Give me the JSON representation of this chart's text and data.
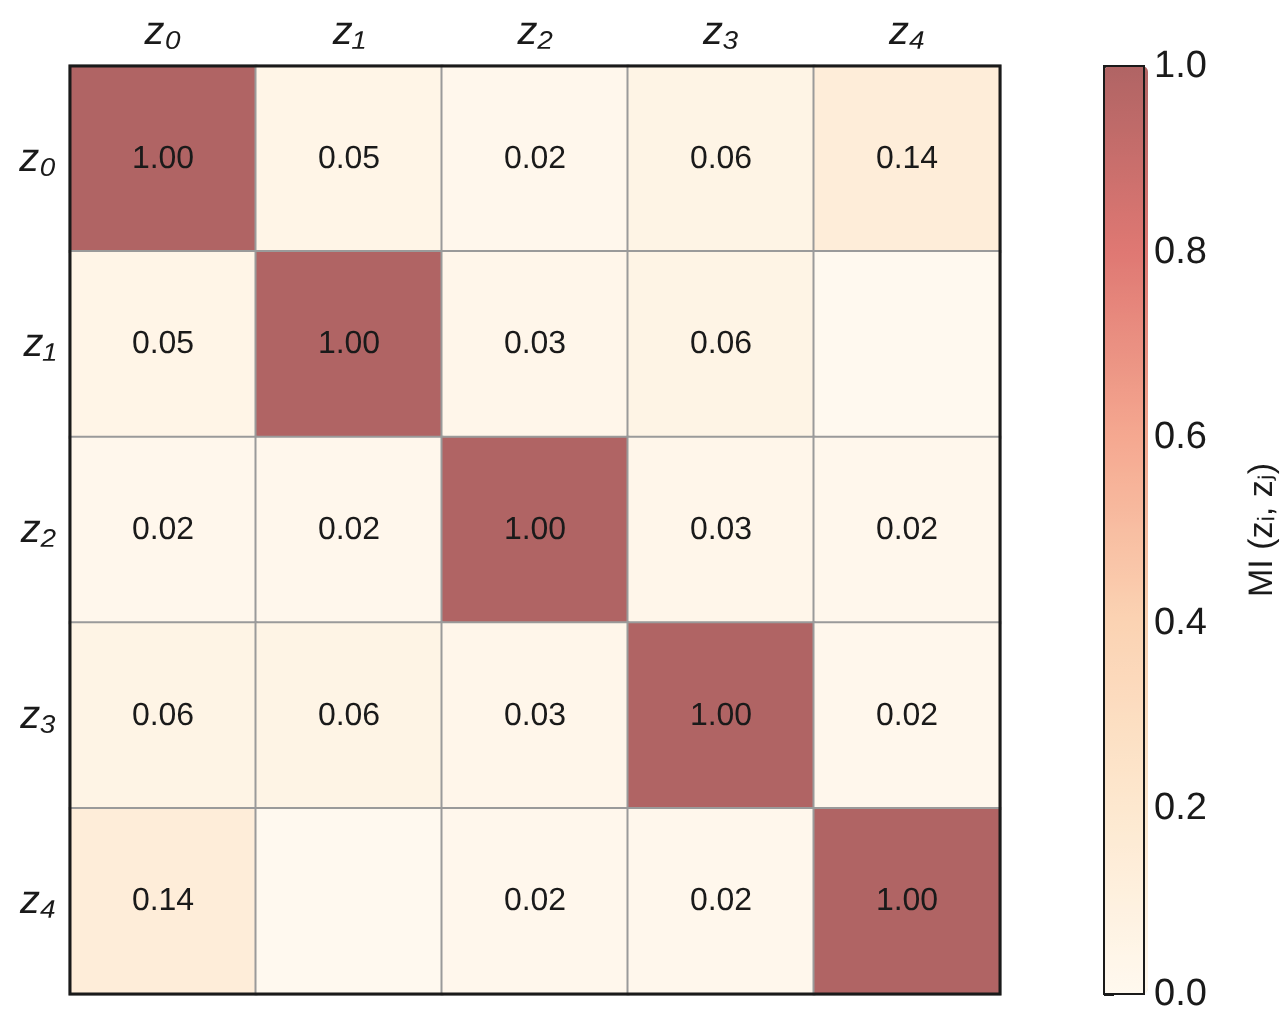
{
  "chart_data": {
    "type": "heatmap",
    "categories": [
      "z₀",
      "z₁",
      "z₂",
      "z₃",
      "z₄"
    ],
    "y_categories": [
      "z₀",
      "z₁",
      "z₂",
      "z₃",
      "z₄"
    ],
    "cells": [
      [
        1.0,
        0.05,
        0.02,
        0.06,
        0.14
      ],
      [
        0.05,
        1.0,
        0.03,
        0.06,
        0
      ],
      [
        0.02,
        0.02,
        1.0,
        0.03,
        0.02
      ],
      [
        0.06,
        0.06,
        0.03,
        1.0,
        0.02
      ],
      [
        0.14,
        0,
        0.02,
        0.02,
        1.0
      ]
    ],
    "cell_labels": [
      [
        "1.00",
        "0.05",
        "0.02",
        "0.06",
        "0.14"
      ],
      [
        "0.05",
        "1.00",
        "0.03",
        "0.06",
        null
      ],
      [
        "0.02",
        "0.02",
        "1.00",
        "0.03",
        "0.02"
      ],
      [
        "0.06",
        "0.06",
        "0.03",
        "1.00",
        "0.02"
      ],
      [
        "0.14",
        null,
        "0.02",
        "0.02",
        "1.00"
      ]
    ],
    "clabel": "MI (zᵢ, zⱼ)",
    "clim": [
      0,
      1
    ],
    "cticks": [
      {
        "value": 0,
        "label": "0.0"
      },
      {
        "value": 0.2,
        "label": "0.2"
      },
      {
        "value": 0.4,
        "label": "0.4"
      },
      {
        "value": 0.6,
        "label": "0.6"
      },
      {
        "value": 0.8,
        "label": "0.8"
      },
      {
        "value": 1,
        "label": "1.0"
      }
    ]
  }
}
